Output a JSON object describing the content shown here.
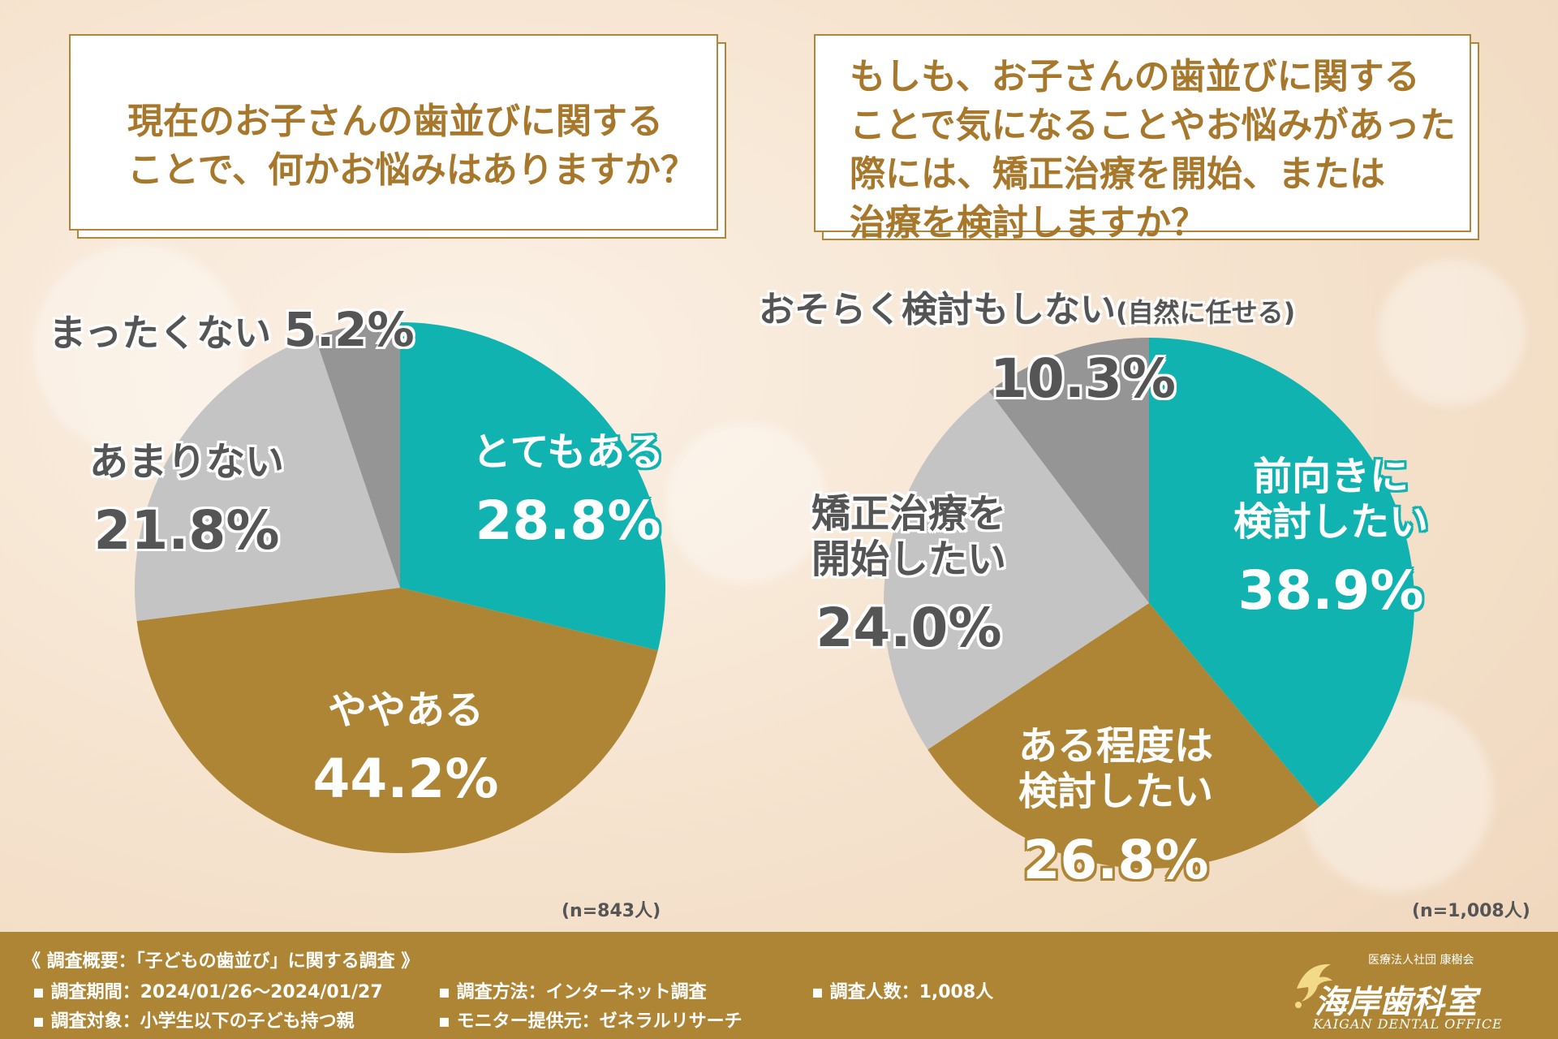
{
  "questions": {
    "q1": "現在のお子さんの歯並びに関する\nことで、何かお悩みはありますか？",
    "q2": "もしも、お子さんの歯並びに関する\nことで気になることやお悩みがあった\n際には、矯正治療を開始、または\n治療を検討しますか？"
  },
  "colors": {
    "teal": "#11b3b0",
    "gold": "#ad8535",
    "light_gray": "#c4c4c4",
    "dark_gray": "#959595"
  },
  "chart_data": [
    {
      "type": "pie",
      "n_label": "(n=843人)",
      "slices": [
        {
          "label": "とてもある",
          "percent_label": "28.8%",
          "value": 28.8,
          "color": "#11b3b0"
        },
        {
          "label": "ややある",
          "percent_label": "44.2%",
          "value": 44.2,
          "color": "#ad8535"
        },
        {
          "label": "あまりない",
          "percent_label": "21.8%",
          "value": 21.8,
          "color": "#c4c4c4"
        },
        {
          "label": "まったくない",
          "percent_label": "5.2%",
          "value": 5.2,
          "color": "#959595"
        }
      ]
    },
    {
      "type": "pie",
      "n_label": "(n=1,008人)",
      "slices": [
        {
          "label": "前向きに\n検討したい",
          "percent_label": "38.9%",
          "value": 38.9,
          "color": "#11b3b0"
        },
        {
          "label": "ある程度は\n検討したい",
          "percent_label": "26.8%",
          "value": 26.8,
          "color": "#ad8535"
        },
        {
          "label": "矯正治療を\n開始したい",
          "percent_label": "24.0%",
          "value": 24.0,
          "color": "#c4c4c4"
        },
        {
          "label": "おそらく検討もしない",
          "label_note": "(自然に任せる)",
          "percent_label": "10.3%",
          "value": 10.3,
          "color": "#959595"
        }
      ]
    }
  ],
  "footer": {
    "title": "《 調査概要：「子どもの歯並び」に関する調査 》",
    "period": "調査期間：2024/01/26〜2024/01/27",
    "method": "調査方法：インターネット調査",
    "count": "調査人数：1,008人",
    "target": "調査対象：小学生以下の子ども持つ親",
    "provider": "モニター提供元：ゼネラルリサーチ",
    "logo_sub": "医療法人社団 康樹会",
    "logo_name": "海岸歯科室",
    "logo_en": "KAIGAN DENTAL OFFICE"
  }
}
